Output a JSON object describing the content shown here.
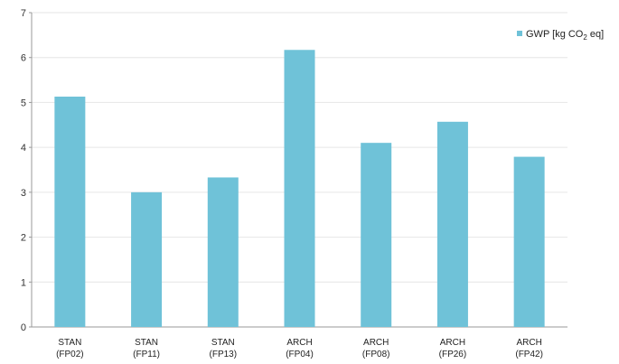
{
  "chart_data": {
    "type": "bar",
    "categories": [
      [
        "STAN",
        "(FP02)"
      ],
      [
        "STAN",
        "(FP11)"
      ],
      [
        "STAN",
        "(FP13)"
      ],
      [
        "ARCH",
        "(FP04)"
      ],
      [
        "ARCH",
        "(FP08)"
      ],
      [
        "ARCH",
        "(FP26)"
      ],
      [
        "ARCH",
        "(FP42)"
      ]
    ],
    "series": [
      {
        "name": "GWP [kg CO2 eq]",
        "legend_parts": [
          "GWP [kg CO",
          "2",
          " eq]"
        ],
        "values": [
          5.13,
          3.0,
          3.33,
          6.17,
          4.1,
          4.57,
          3.79
        ]
      }
    ],
    "yticks": [
      0,
      1,
      2,
      3,
      4,
      5,
      6,
      7
    ],
    "ylim": [
      0,
      7
    ],
    "grid": true,
    "legend_position": "top-right",
    "bar_color": "#6fc2d8"
  }
}
